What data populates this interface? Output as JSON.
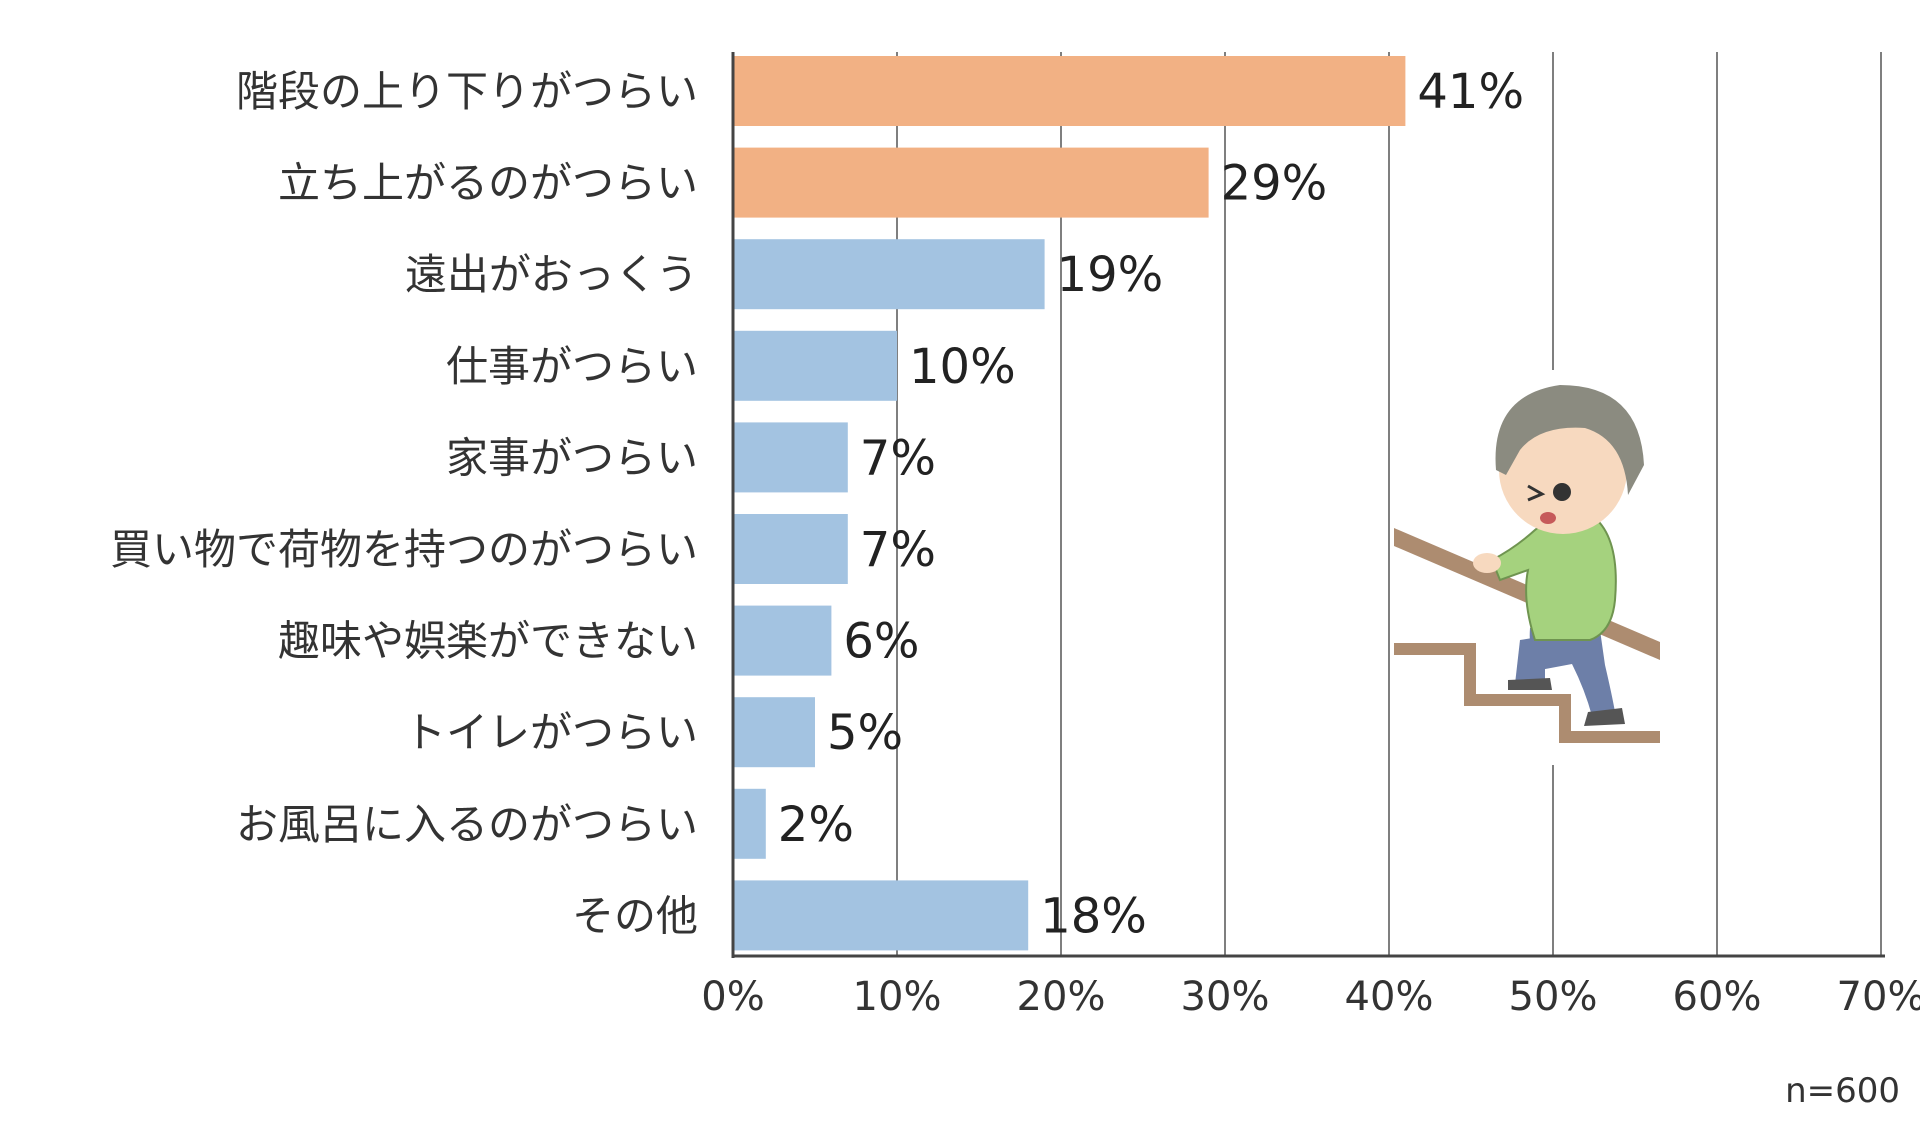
{
  "chart_data": {
    "type": "bar",
    "orientation": "horizontal",
    "categories": [
      "階段の上り下りがつらい",
      "立ち上がるのがつらい",
      "遠出がおっくう",
      "仕事がつらい",
      "家事がつらい",
      "買い物で荷物を持つのがつらい",
      "趣味や娯楽ができない",
      "トイレがつらい",
      "お風呂に入るのがつらい",
      "その他"
    ],
    "values": [
      41,
      29,
      19,
      10,
      7,
      7,
      6,
      5,
      2,
      18
    ],
    "value_labels": [
      "41%",
      "29%",
      "19%",
      "10%",
      "7%",
      "7%",
      "6%",
      "5%",
      "2%",
      "18%"
    ],
    "highlight": [
      true,
      true,
      false,
      false,
      false,
      false,
      false,
      false,
      false,
      false
    ],
    "xlim": [
      0,
      70
    ],
    "xticks": [
      0,
      10,
      20,
      30,
      40,
      50,
      60,
      70
    ],
    "xtick_labels": [
      "0%",
      "10%",
      "20%",
      "30%",
      "40%",
      "50%",
      "60%",
      "70%"
    ],
    "grid": "vertical",
    "title": "",
    "xlabel": "",
    "ylabel": "",
    "colors": {
      "highlight": "#f2b184",
      "normal": "#a3c3e1",
      "grid": "#555555",
      "axis": "#444444"
    }
  },
  "sample_note": "n=600",
  "illustration": {
    "icon": "elderly-man-climbing-stairs-illustration"
  }
}
